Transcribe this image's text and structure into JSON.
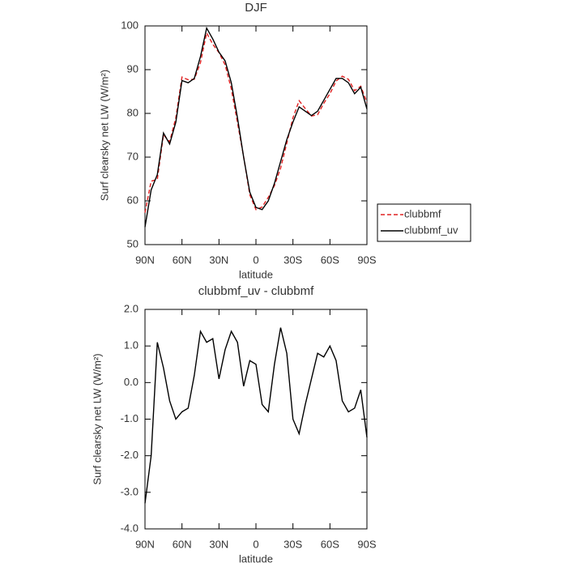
{
  "chart_data": [
    {
      "type": "line",
      "title": "DJF",
      "ylabel": "Surf clearsky net LW (W/m²)",
      "xlabel": "latitude",
      "x": [
        90,
        85,
        80,
        75,
        70,
        65,
        60,
        55,
        50,
        45,
        40,
        35,
        30,
        25,
        20,
        15,
        10,
        5,
        0,
        -5,
        -10,
        -15,
        -20,
        -25,
        -30,
        -35,
        -40,
        -45,
        -50,
        -55,
        -60,
        -65,
        -70,
        -75,
        -80,
        -85,
        -90
      ],
      "xlim": [
        90,
        -90
      ],
      "xticks": [
        {
          "value": 90,
          "label": "90N"
        },
        {
          "value": 60,
          "label": "60N"
        },
        {
          "value": 30,
          "label": "30N"
        },
        0,
        {
          "value": -30,
          "label": "30S"
        },
        {
          "value": -60,
          "label": "60S"
        },
        {
          "value": -90,
          "label": "90S"
        }
      ],
      "ylim": [
        50,
        100
      ],
      "yticks": [
        50,
        60,
        70,
        80,
        90,
        100
      ],
      "legend": "right",
      "series": [
        {
          "name": "clubbmf",
          "color": "#e02020",
          "style": "dashed",
          "values": [
            57.3,
            64.5,
            64.9,
            75.1,
            73.5,
            79,
            88.3,
            87.7,
            87.8,
            91.6,
            98.4,
            95.8,
            93.9,
            91.1,
            85.6,
            77.9,
            70.1,
            61.4,
            58,
            58.6,
            60.8,
            63.5,
            67.5,
            73.2,
            79,
            82.9,
            81.1,
            79.4,
            79.7,
            82.3,
            84.5,
            87.4,
            88.5,
            87.8,
            85.2,
            86.2,
            82.5
          ]
        },
        {
          "name": "clubbmf_uv",
          "color": "#000000",
          "style": "solid",
          "values": [
            54,
            62.5,
            66,
            75.5,
            73,
            78,
            87.5,
            87,
            88,
            93,
            99.5,
            97,
            94,
            92,
            87,
            79,
            70,
            62,
            58.5,
            58,
            60,
            64,
            69,
            74,
            78,
            81.5,
            80.5,
            79.5,
            80.5,
            83,
            85.5,
            88,
            88,
            87,
            84.5,
            86,
            81
          ]
        }
      ]
    },
    {
      "type": "line",
      "title": "clubbmf_uv - clubbmf",
      "ylabel": "Surf clearsky net LW (W/m²)",
      "xlabel": "latitude",
      "x": [
        90,
        85,
        80,
        75,
        70,
        65,
        60,
        55,
        50,
        45,
        40,
        35,
        30,
        25,
        20,
        15,
        10,
        5,
        0,
        -5,
        -10,
        -15,
        -20,
        -25,
        -30,
        -35,
        -40,
        -45,
        -50,
        -55,
        -60,
        -65,
        -70,
        -75,
        -80,
        -85,
        -90
      ],
      "xlim": [
        90,
        -90
      ],
      "xticks": [
        {
          "value": 90,
          "label": "90N"
        },
        {
          "value": 60,
          "label": "60N"
        },
        {
          "value": 30,
          "label": "30N"
        },
        0,
        {
          "value": -30,
          "label": "30S"
        },
        {
          "value": -60,
          "label": "60S"
        },
        {
          "value": -90,
          "label": "90S"
        }
      ],
      "ylim": [
        -4,
        2
      ],
      "yticks": [
        {
          "value": -4,
          "label": "-4.0"
        },
        {
          "value": -3,
          "label": "-3.0"
        },
        {
          "value": -2,
          "label": "-2.0"
        },
        {
          "value": -1,
          "label": "-1.0"
        },
        {
          "value": 0,
          "label": "0.0"
        },
        {
          "value": 1,
          "label": "1.0"
        },
        {
          "value": 2,
          "label": "2.0"
        }
      ],
      "series": [
        {
          "color": "#000000",
          "style": "solid",
          "values": [
            -3.3,
            -2.0,
            1.1,
            0.4,
            -0.5,
            -1.0,
            -0.8,
            -0.7,
            0.2,
            1.4,
            1.1,
            1.2,
            0.1,
            0.9,
            1.4,
            1.1,
            -0.1,
            0.6,
            0.5,
            -0.6,
            -0.8,
            0.5,
            1.5,
            0.8,
            -1.0,
            -1.4,
            -0.6,
            0.1,
            0.8,
            0.7,
            1.0,
            0.6,
            -0.5,
            -0.8,
            -0.7,
            -0.2,
            -1.5
          ]
        }
      ]
    }
  ]
}
